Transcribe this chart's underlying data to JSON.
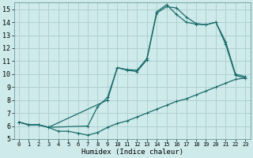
{
  "xlabel": "Humidex (Indice chaleur)",
  "bg_color": "#ceeaea",
  "grid_color": "#b0d0d0",
  "line_color": "#1a6b6b",
  "xlim": [
    -0.5,
    23.5
  ],
  "ylim": [
    5,
    15.5
  ],
  "yticks": [
    5,
    6,
    7,
    8,
    9,
    10,
    11,
    12,
    13,
    14,
    15
  ],
  "xticks": [
    0,
    1,
    2,
    3,
    4,
    5,
    6,
    7,
    8,
    9,
    10,
    11,
    12,
    13,
    14,
    15,
    16,
    17,
    18,
    19,
    20,
    21,
    22,
    23
  ],
  "line1_x": [
    0,
    1,
    2,
    3,
    4,
    5,
    6,
    7,
    8,
    9,
    10,
    11,
    12,
    13,
    14,
    15,
    16,
    17,
    18,
    19,
    20,
    21,
    22,
    23
  ],
  "line1_y": [
    6.3,
    6.1,
    6.1,
    5.9,
    5.6,
    5.6,
    5.45,
    5.3,
    5.5,
    5.9,
    6.2,
    6.4,
    6.7,
    7.0,
    7.3,
    7.6,
    7.9,
    8.1,
    8.4,
    8.7,
    9.0,
    9.3,
    9.6,
    9.7
  ],
  "line2_x": [
    0,
    1,
    2,
    3,
    9,
    10,
    11,
    12,
    13,
    14,
    15,
    16,
    17,
    18,
    19,
    20,
    21,
    22,
    23
  ],
  "line2_y": [
    6.3,
    6.1,
    6.1,
    5.9,
    8.0,
    10.5,
    10.3,
    10.2,
    11.1,
    14.7,
    15.2,
    15.1,
    14.4,
    13.9,
    13.8,
    14.0,
    12.3,
    9.9,
    9.7
  ],
  "line3_x": [
    0,
    1,
    2,
    3,
    7,
    8,
    9,
    10,
    11,
    12,
    13,
    14,
    15,
    16,
    17,
    18,
    19,
    20,
    21,
    22,
    23
  ],
  "line3_y": [
    6.3,
    6.1,
    6.1,
    5.9,
    6.0,
    7.5,
    8.2,
    10.5,
    10.35,
    10.3,
    11.2,
    14.8,
    15.35,
    14.6,
    14.0,
    13.85,
    13.8,
    14.0,
    12.5,
    10.0,
    9.8
  ]
}
